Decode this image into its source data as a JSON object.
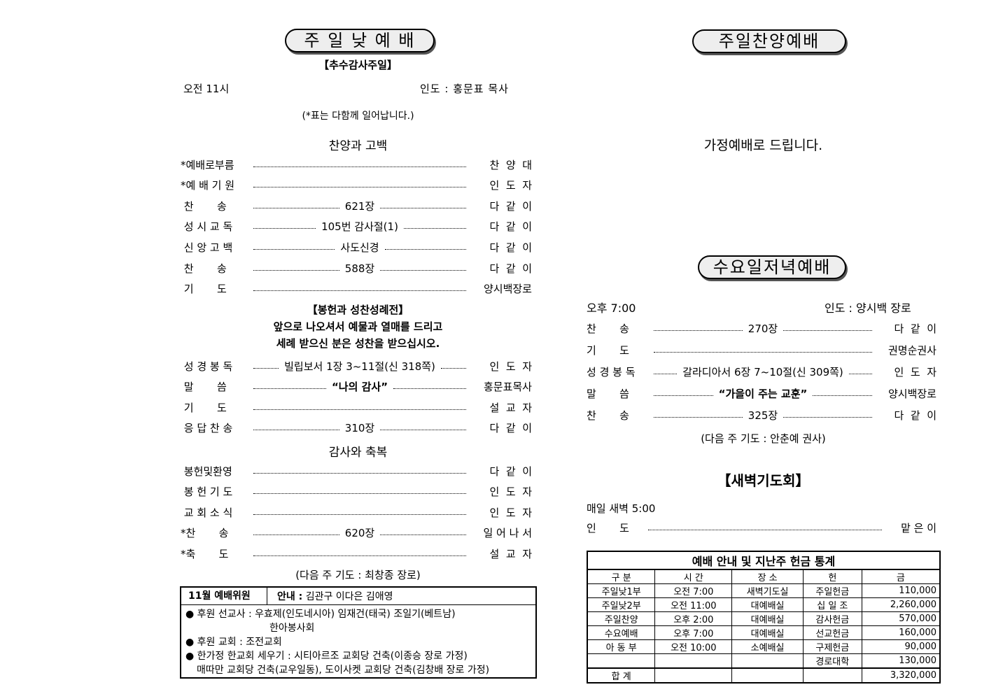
{
  "left": {
    "title": "주 일 낮 예 배",
    "subtitle": "【추수감사주일】",
    "time": "오전 11시",
    "leader": "인도 : 홍문표 목사",
    "note": "(*표는 다함께 일어납니다.)",
    "section1": "찬양과 고백",
    "items1": [
      {
        "label": "*예배로부름",
        "mid": "",
        "value": "찬  양  대"
      },
      {
        "label": "*예 배 기 원",
        "mid": "",
        "value": "인  도  자"
      },
      {
        "label": " 찬       송",
        "mid": "621장",
        "value": "다  같  이"
      },
      {
        "label": " 성 시 교 독",
        "mid": "105번 감사절(1)",
        "value": "다  같  이"
      },
      {
        "label": " 신 앙 고 백",
        "mid": "사도신경",
        "value": "다  같  이"
      },
      {
        "label": " 찬       송",
        "mid": "588장",
        "value": "다  같  이"
      },
      {
        "label": " 기       도",
        "mid": "",
        "value": "양시백장로"
      }
    ],
    "offering_title": "【봉헌과 성찬성례전】",
    "offering_line1": "앞으로 나오셔서 예물과 열매를 드리고",
    "offering_line2": "세례 받으신 분은 성찬을 받으십시오.",
    "items2": [
      {
        "label": " 성 경 봉 독",
        "mid": "빌립보서 1장 3~11절(신 318쪽)",
        "value": "인  도  자"
      },
      {
        "label": " 말       씀",
        "mid": "“나의 감사”",
        "value": "홍문표목사",
        "bold": true
      },
      {
        "label": " 기       도",
        "mid": "",
        "value": "설  교  자"
      },
      {
        "label": " 응 답 찬 송",
        "mid": "310장",
        "value": "다  같  이"
      }
    ],
    "section2": "감사와 축복",
    "items3": [
      {
        "label": " 봉헌및환영",
        "mid": "",
        "value": "다  같  이"
      },
      {
        "label": " 봉 헌 기 도",
        "mid": "",
        "value": "인  도  자"
      },
      {
        "label": " 교 회 소 식",
        "mid": "",
        "value": "인  도  자"
      },
      {
        "label": "*찬       송",
        "mid": "620장",
        "value": "일 어 나 서"
      },
      {
        "label": "*축       도",
        "mid": "",
        "value": "설  교  자"
      }
    ],
    "next_prayer": "(다음 주 기도 : 최창종 장로)",
    "info_box": {
      "committee_label": "11월 예배위원",
      "guide_label": "안내 :",
      "guide_names": "김관구 이다은 김애영",
      "missionaries": "후원 선교사 : 우효제(인도네시아)  임재건(태국)  조일기(베트남)",
      "missionaries2": "한아봉사회",
      "church": "후원 교회  : 조전교회",
      "one_family": "한가정 한교회 세우기 : 시티아르조 교회당 건축(이종승 장로 가정)",
      "one_family2": "매따만 교회당 건축(교우일동), 도이사켓 교회당 건축(김창배 장로 가정)"
    }
  },
  "right": {
    "title1": "주일찬양예배",
    "home_worship": "가정예배로 드립니다.",
    "title2": "수요일저녁예배",
    "time": "오후 7:00",
    "leader": "인도 : 양시백 장로",
    "items": [
      {
        "label": "찬       송",
        "mid": "270장",
        "value": "다  같  이"
      },
      {
        "label": "기       도",
        "mid": "",
        "value": "권명순권사"
      },
      {
        "label": "성 경 봉 독",
        "mid": "갈라디아서 6장 7~10절(신 309쪽)",
        "value": "인  도  자"
      },
      {
        "label": "말       씀",
        "mid": "“가을이 주는 교훈”",
        "value": "양시백장로",
        "bold": true
      },
      {
        "label": "찬       송",
        "mid": "325장",
        "value": "다  같  이"
      }
    ],
    "next_prayer": "(다음 주 기도 : 안춘예 권사)",
    "dawn_title": "【새벽기도회】",
    "dawn_time": "매일 새벽 5:00",
    "dawn_leader_label": "인       도",
    "dawn_leader": "맡 은 이",
    "stats": {
      "title": "예배 안내 및 지난주 헌금 통계",
      "headers": [
        "구    분",
        "시  간",
        "장    소",
        "헌",
        "금"
      ],
      "rows": [
        [
          "주일낮1부",
          "오전  7:00",
          "새벽기도실",
          "주일헌금",
          "110,000"
        ],
        [
          "주일낮2부",
          "오전  11:00",
          "대예배실",
          "십 일 조",
          "2,260,000"
        ],
        [
          "주일찬양",
          "오후  2:00",
          "대예배실",
          "감사헌금",
          "570,000"
        ],
        [
          "수요예배",
          "오후  7:00",
          "대예배실",
          "선교헌금",
          "160,000"
        ],
        [
          "아 동 부",
          "오전 10:00",
          "소예배실",
          "구제헌금",
          "90,000"
        ],
        [
          "",
          "",
          "",
          "경로대학",
          "130,000"
        ],
        [
          "합    계",
          "",
          "",
          "",
          "3,320,000"
        ]
      ]
    }
  }
}
